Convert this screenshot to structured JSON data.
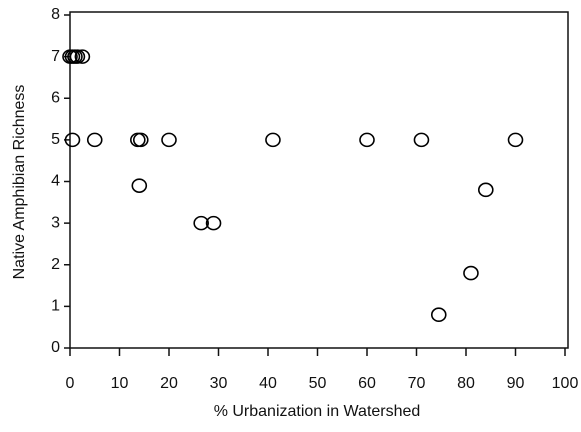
{
  "chart_data": {
    "type": "scatter",
    "xlabel": "% Urbanization in Watershed",
    "ylabel": "Native Amphibian Richness",
    "x": [
      0,
      0.5,
      1,
      1.5,
      2.5,
      0.5,
      5,
      13.7,
      14.3,
      20,
      41,
      60,
      71,
      90,
      14,
      26.5,
      29,
      84,
      81,
      74.5
    ],
    "y": [
      7,
      7,
      7,
      7,
      7,
      5,
      5,
      5,
      5,
      5,
      5,
      5,
      5,
      5,
      3.9,
      3,
      3,
      3.8,
      1.8,
      0.8
    ],
    "color": "#000000",
    "xlim": [
      0,
      100
    ],
    "xticks": [
      0,
      10,
      20,
      30,
      40,
      50,
      60,
      70,
      80,
      90,
      100
    ],
    "ylim": [
      0,
      8
    ],
    "yticks": [
      0,
      1,
      2,
      3,
      4,
      5,
      6,
      7,
      8
    ]
  }
}
